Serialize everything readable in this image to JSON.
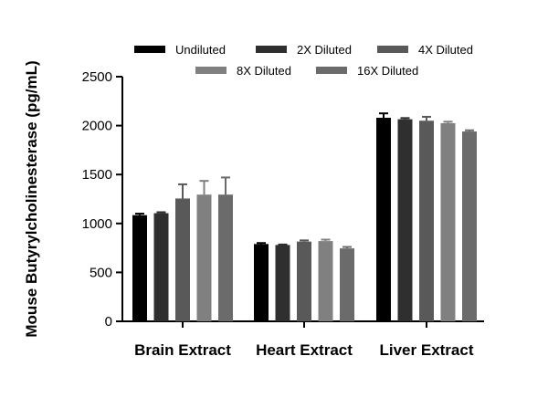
{
  "chart_data": {
    "type": "bar",
    "ylabel": "Mouse Butyrylcholinesterase (pg/mL)",
    "ylim": [
      0,
      2500
    ],
    "yticks": [
      "0",
      "500",
      "1000",
      "1500",
      "2000",
      "2500"
    ],
    "categories": [
      "Brain Extract",
      "Heart Extract",
      "Liver Extract"
    ],
    "series": [
      {
        "name": "Undiluted",
        "color": "#000000",
        "values": [
          1085,
          790,
          2080
        ],
        "errors": [
          15,
          10,
          45
        ]
      },
      {
        "name": "2X Diluted",
        "color": "#2f2f2f",
        "values": [
          1105,
          780,
          2065
        ],
        "errors": [
          10,
          5,
          12
        ]
      },
      {
        "name": "4X Diluted",
        "color": "#595959",
        "values": [
          1255,
          815,
          2050
        ],
        "errors": [
          145,
          12,
          40
        ]
      },
      {
        "name": "8X Diluted",
        "color": "#808080",
        "values": [
          1295,
          820,
          2025
        ],
        "errors": [
          140,
          15,
          15
        ]
      },
      {
        "name": "16X Diluted",
        "color": "#6b6b6b",
        "values": [
          1295,
          745,
          1940
        ],
        "errors": [
          175,
          15,
          12
        ]
      }
    ],
    "legend_position": "top",
    "grid": false
  }
}
